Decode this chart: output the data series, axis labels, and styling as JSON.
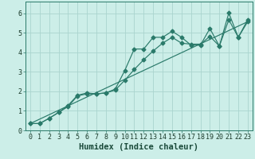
{
  "xlabel": "Humidex (Indice chaleur)",
  "bg_color": "#cceee8",
  "grid_color": "#aad4ce",
  "line_color": "#2a7a6a",
  "xlim": [
    -0.5,
    23.5
  ],
  "ylim": [
    0,
    6.6
  ],
  "xticks": [
    0,
    1,
    2,
    3,
    4,
    5,
    6,
    7,
    8,
    9,
    10,
    11,
    12,
    13,
    14,
    15,
    16,
    17,
    18,
    19,
    20,
    21,
    22,
    23
  ],
  "yticks": [
    0,
    1,
    2,
    3,
    4,
    5,
    6
  ],
  "series1_x": [
    0,
    1,
    2,
    3,
    4,
    5,
    6,
    7,
    8,
    9,
    10,
    11,
    12,
    13,
    14,
    15,
    16,
    17,
    18,
    19,
    20,
    21,
    22,
    23
  ],
  "series1_y": [
    0.35,
    0.35,
    0.62,
    0.92,
    1.28,
    1.8,
    1.92,
    1.87,
    1.92,
    2.12,
    3.07,
    4.17,
    4.17,
    4.77,
    4.77,
    5.08,
    4.77,
    4.37,
    4.37,
    5.22,
    4.32,
    6.02,
    4.77,
    5.67
  ],
  "series2_x": [
    0,
    1,
    2,
    3,
    4,
    5,
    6,
    7,
    8,
    9,
    10,
    11,
    12,
    13,
    14,
    15,
    16,
    17,
    18,
    19,
    20,
    21,
    22,
    23
  ],
  "series2_y": [
    0.35,
    0.35,
    0.62,
    0.92,
    1.22,
    1.77,
    1.87,
    1.87,
    1.92,
    2.07,
    2.57,
    3.12,
    3.62,
    4.07,
    4.47,
    4.77,
    4.47,
    4.42,
    4.42,
    4.82,
    4.32,
    5.67,
    4.77,
    5.57
  ],
  "series3_x": [
    0,
    23
  ],
  "series3_y": [
    0.35,
    5.57
  ],
  "xlabel_fontsize": 7.5,
  "tick_fontsize": 6.0
}
